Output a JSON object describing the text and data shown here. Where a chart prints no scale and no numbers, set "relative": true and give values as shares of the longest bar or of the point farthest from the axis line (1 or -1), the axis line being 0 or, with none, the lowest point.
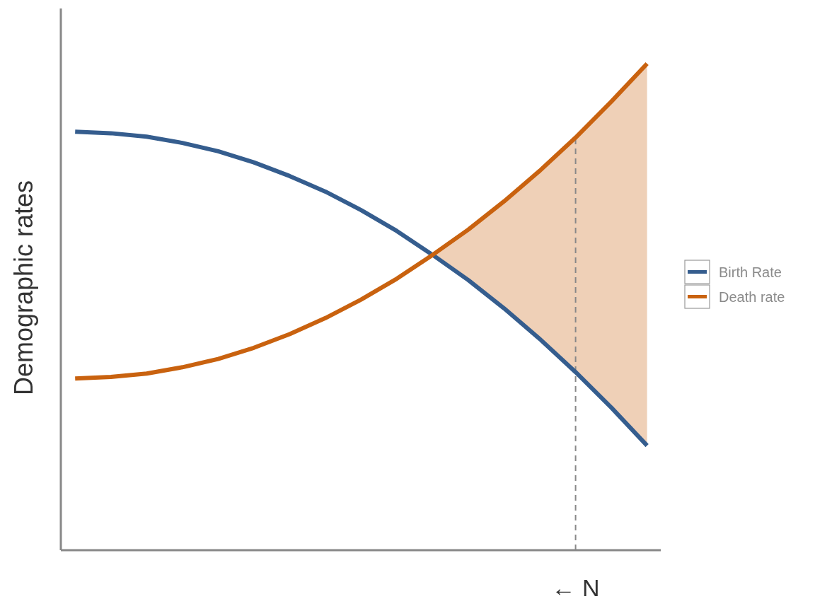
{
  "chart_data": {
    "type": "line",
    "ylabel": "Demographic rates",
    "relative": true,
    "categories": [
      null,
      null,
      null,
      null,
      null,
      null,
      null,
      null,
      null,
      null,
      null,
      null,
      null,
      null,
      null,
      null,
      null
    ],
    "legend": "right",
    "marker": "none",
    "line_style": "solid",
    "series": [
      {
        "name": "Birth Rate",
        "color": "#355d8e",
        "values": [
          0.86,
          0.857,
          0.85,
          0.837,
          0.82,
          0.797,
          0.769,
          0.737,
          0.699,
          0.656,
          0.607,
          0.555,
          0.497,
          0.434,
          0.366,
          0.293,
          0.215
        ]
      },
      {
        "name": "Death rate",
        "color": "#c9620f",
        "values": [
          0.353,
          0.356,
          0.363,
          0.376,
          0.393,
          0.416,
          0.444,
          0.477,
          0.515,
          0.558,
          0.607,
          0.659,
          0.717,
          0.78,
          0.848,
          0.922,
          1.0
        ],
        "lower": [
          null,
          null,
          null,
          null,
          null,
          null,
          null,
          null,
          null,
          null,
          0.607,
          0.555,
          0.497,
          0.434,
          0.366,
          0.293,
          0.215
        ],
        "upper": [
          null,
          null,
          null,
          null,
          null,
          null,
          null,
          null,
          null,
          null,
          0.607,
          0.659,
          0.717,
          0.78,
          0.848,
          0.922,
          1.0
        ]
      }
    ],
    "annotations": [
      "← N"
    ]
  }
}
